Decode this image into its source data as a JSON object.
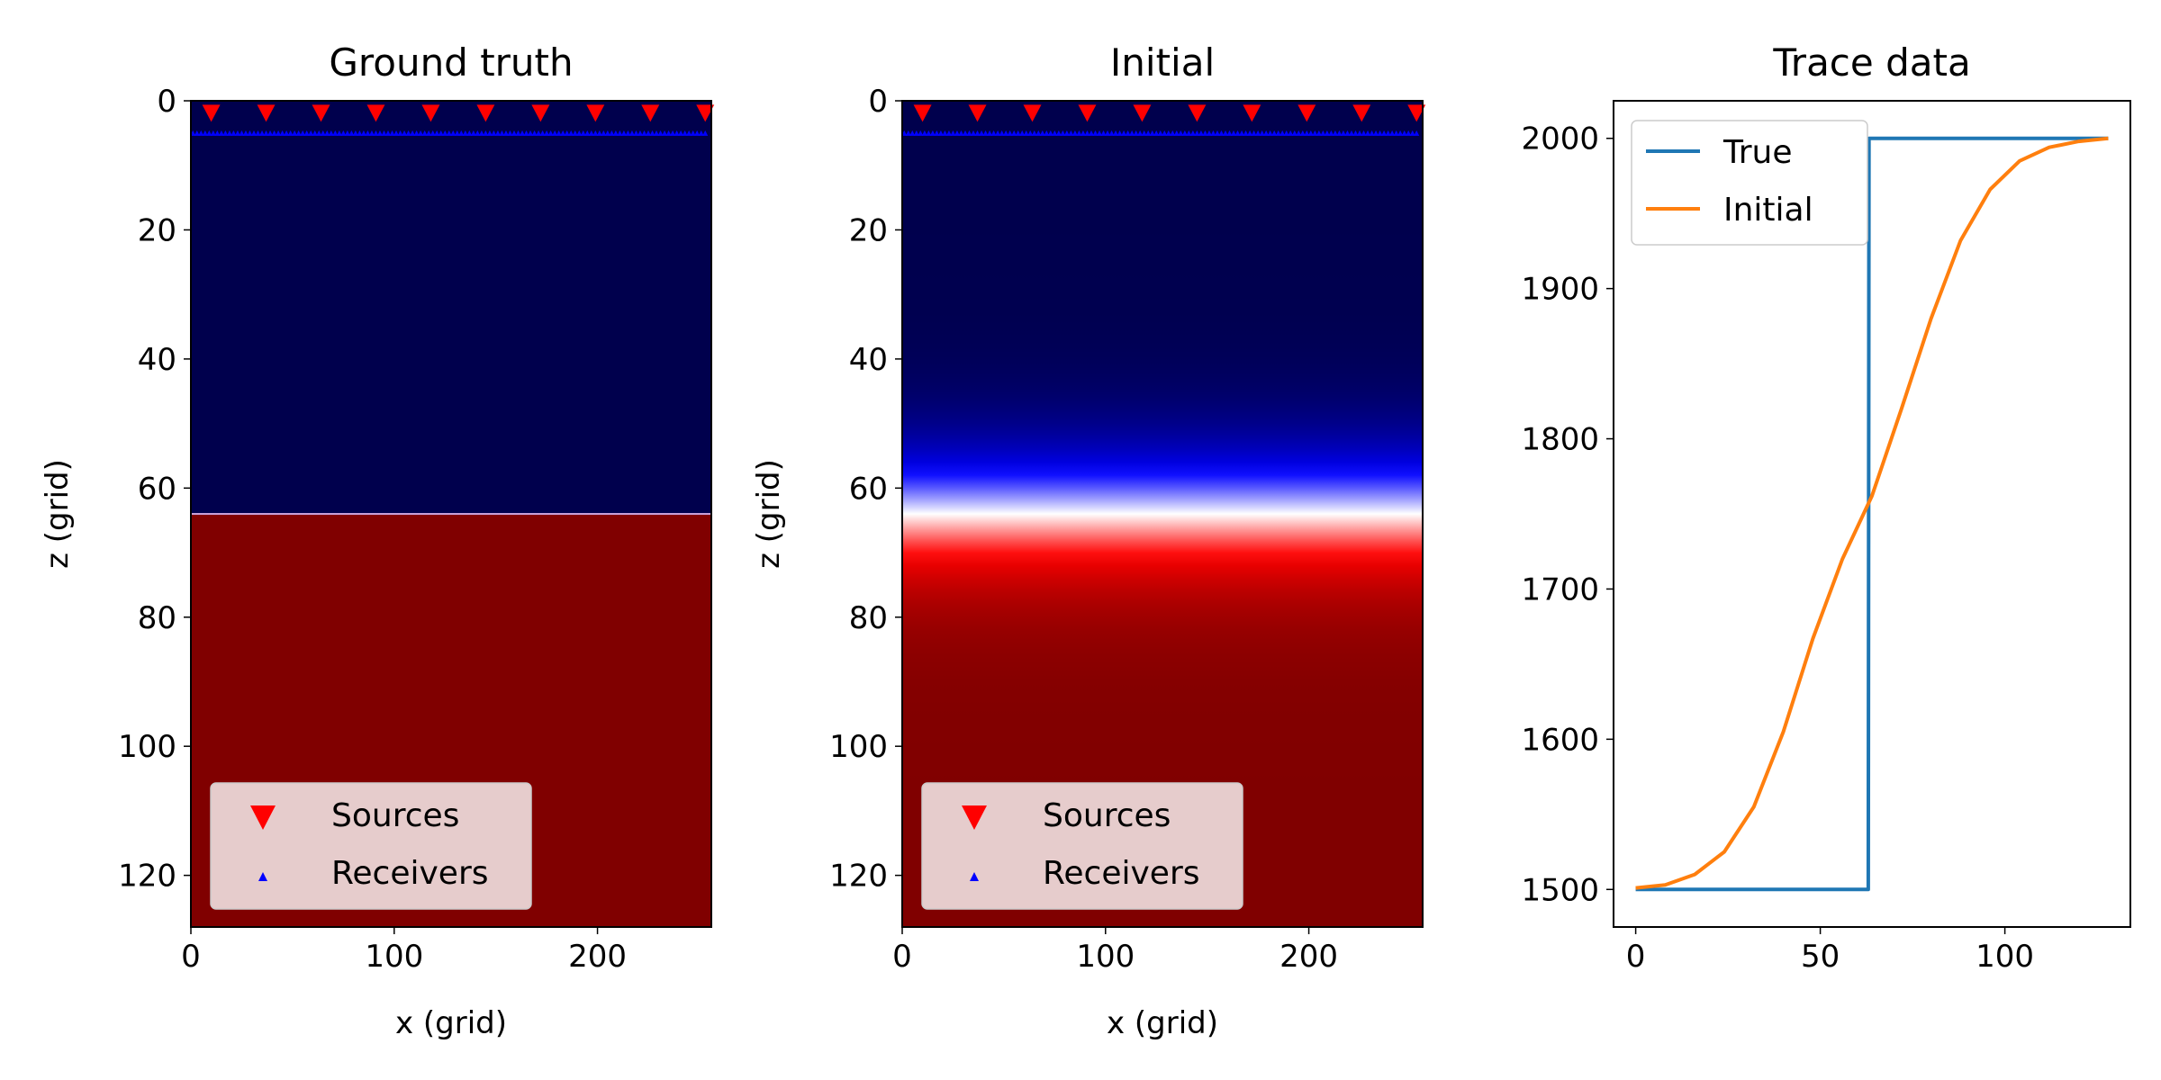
{
  "chart_data": [
    {
      "type": "heatmap",
      "title": "Ground truth",
      "xlabel": "x (grid)",
      "ylabel": "z (grid)",
      "xlim": [
        0,
        256
      ],
      "ylim": [
        128,
        0
      ],
      "xticks": [
        0,
        100,
        200
      ],
      "yticks": [
        0,
        20,
        40,
        60,
        80,
        100,
        120
      ],
      "field": {
        "kind": "step",
        "interface_z": 64,
        "value_above": 1500,
        "value_below": 2000
      },
      "colormap": "seismic",
      "colors": {
        "low": "#00004d",
        "mid": "#ffffff",
        "high": "#800000"
      },
      "sources": {
        "label": "Sources",
        "x": [
          10,
          37,
          64,
          91,
          118,
          145,
          172,
          199,
          226,
          253
        ],
        "z": 2,
        "color": "#ff0000"
      },
      "receivers": {
        "label": "Receivers",
        "x_start": 1,
        "x_end": 254,
        "x_step": 2,
        "z": 5,
        "color": "#0000ff"
      },
      "legend": "lower-left"
    },
    {
      "type": "heatmap",
      "title": "Initial",
      "xlabel": "x (grid)",
      "ylabel": "z (grid)",
      "xlim": [
        0,
        256
      ],
      "ylim": [
        128,
        0
      ],
      "xticks": [
        0,
        100,
        200
      ],
      "yticks": [
        0,
        20,
        40,
        60,
        80,
        100,
        120
      ],
      "field": {
        "kind": "smooth",
        "center_z": 64,
        "width_z": 13,
        "value_above": 1500,
        "value_below": 2000
      },
      "colormap": "seismic",
      "colors": {
        "low": "#00004d",
        "mid": "#ffffff",
        "high": "#800000"
      },
      "sources": {
        "label": "Sources",
        "x": [
          10,
          37,
          64,
          91,
          118,
          145,
          172,
          199,
          226,
          253
        ],
        "z": 2,
        "color": "#ff0000"
      },
      "receivers": {
        "label": "Receivers",
        "x_start": 1,
        "x_end": 254,
        "x_step": 2,
        "z": 5,
        "color": "#0000ff"
      },
      "legend": "lower-left"
    },
    {
      "type": "line",
      "title": "Trace data",
      "xlim": [
        -6,
        134
      ],
      "ylim": [
        1475,
        2025
      ],
      "xticks": [
        0,
        50,
        100
      ],
      "yticks": [
        1500,
        1600,
        1700,
        1800,
        1900,
        2000
      ],
      "series": [
        {
          "name": "True",
          "color": "#1f77b4",
          "x": [
            0,
            63,
            63.2,
            128
          ],
          "values": [
            1500,
            1500,
            2000,
            2000
          ]
        },
        {
          "name": "Initial",
          "color": "#ff7f0e",
          "x": [
            0,
            8,
            16,
            24,
            32,
            40,
            48,
            56,
            64,
            72,
            80,
            88,
            96,
            104,
            112,
            120,
            128
          ],
          "values": [
            1501,
            1503,
            1510,
            1525,
            1555,
            1605,
            1667,
            1720,
            1762,
            1820,
            1880,
            1932,
            1966,
            1985,
            1994,
            1998,
            2000
          ]
        }
      ],
      "legend": "top-left"
    }
  ]
}
